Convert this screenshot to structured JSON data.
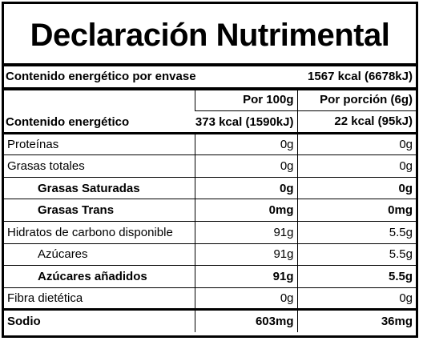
{
  "title": "Declaración Nutrimental",
  "energy_total": {
    "label": "Contenido energético por envase",
    "value": "1567 kcal (6678kJ)"
  },
  "headers": {
    "per100": "Por 100g",
    "perServing": "Por porción (6g)"
  },
  "energy": {
    "label": "Contenido energético",
    "per100": "373 kcal (1590kJ)",
    "perServing": "22 kcal (95kJ)"
  },
  "rows": [
    {
      "label": "Proteínas",
      "per100": "0g",
      "perServing": "0g"
    },
    {
      "label": "Grasas totales",
      "per100": "0g",
      "perServing": "0g"
    },
    {
      "label": "Grasas Saturadas",
      "per100": "0g",
      "perServing": "0g"
    },
    {
      "label": "Grasas Trans",
      "per100": "0mg",
      "perServing": "0mg"
    },
    {
      "label": "Hidratos de carbono disponible",
      "per100": "91g",
      "perServing": "5.5g"
    },
    {
      "label": "Azúcares",
      "per100": "91g",
      "perServing": "5.5g"
    },
    {
      "label": "Azúcares añadidos",
      "per100": "91g",
      "perServing": "5.5g"
    },
    {
      "label": "Fibra dietética",
      "per100": "0g",
      "perServing": "0g"
    },
    {
      "label": "Sodio",
      "per100": "603mg",
      "perServing": "36mg"
    }
  ]
}
